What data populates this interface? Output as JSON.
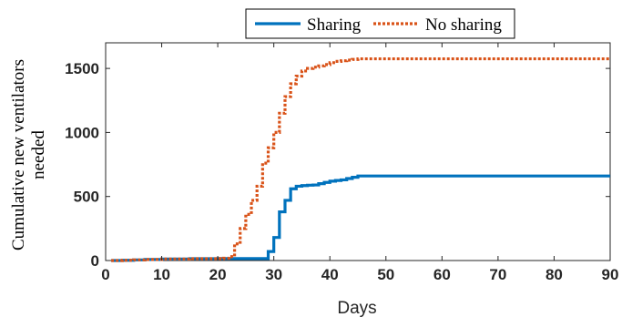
{
  "chart_data": {
    "type": "line",
    "xlabel": "Days",
    "ylabel_lines": [
      "Cumulative new ventilators",
      "needed"
    ],
    "xlim": [
      0,
      90
    ],
    "ylim": [
      0,
      1700
    ],
    "xticks": [
      0,
      10,
      20,
      30,
      40,
      50,
      60,
      70,
      80,
      90
    ],
    "yticks": [
      0,
      500,
      1000,
      1500
    ],
    "grid": false,
    "legend_position": "top-center, outside plot",
    "step": true,
    "series": [
      {
        "name": "Sharing",
        "color": "#0072BD",
        "style": "solid",
        "x": [
          1,
          3,
          5,
          7,
          10,
          15,
          20,
          28,
          29,
          30,
          31,
          32,
          33,
          34,
          35,
          36,
          37,
          38,
          39,
          40,
          41,
          42,
          43,
          44,
          45,
          90
        ],
        "y": [
          0,
          2,
          5,
          8,
          12,
          14,
          15,
          15,
          70,
          180,
          380,
          470,
          560,
          580,
          585,
          588,
          590,
          600,
          610,
          620,
          625,
          630,
          640,
          650,
          660,
          660
        ]
      },
      {
        "name": "No sharing",
        "color": "#D95319",
        "style": "dotted",
        "x": [
          1,
          3,
          5,
          7,
          10,
          15,
          20,
          21,
          22,
          23,
          24,
          25,
          26,
          27,
          28,
          29,
          30,
          31,
          32,
          33,
          34,
          35,
          36,
          37,
          38,
          39,
          40,
          41,
          42,
          43,
          44,
          45,
          90
        ],
        "y": [
          0,
          2,
          5,
          8,
          12,
          14,
          15,
          18,
          30,
          130,
          250,
          360,
          470,
          580,
          760,
          880,
          1000,
          1150,
          1280,
          1380,
          1440,
          1480,
          1500,
          1510,
          1520,
          1530,
          1545,
          1555,
          1560,
          1565,
          1570,
          1575,
          1575
        ]
      }
    ]
  }
}
